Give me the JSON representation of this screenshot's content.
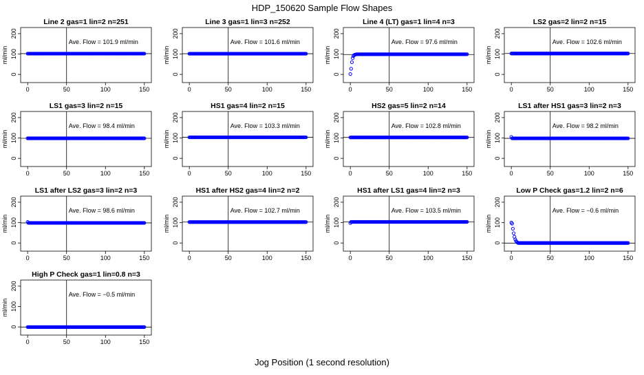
{
  "figure": {
    "title": "HDP_150620  Sample Flow Shapes",
    "xlabel": "Jog Position (1 second resolution)"
  },
  "chart_data": [
    {
      "type": "scatter",
      "title": "Line 2 gas=1 lin=2 n=251",
      "ylabel": "ml/min",
      "annotation": "Ave. Flow = 101.9  ml/min",
      "xlim": [
        0,
        150
      ],
      "ylim": [
        -40,
        230
      ],
      "xticks": [
        0,
        50,
        100,
        150
      ],
      "yticks": [
        0,
        100,
        200
      ],
      "vline": 50,
      "hline": 101.9,
      "point_color": "#0000ff",
      "x": [
        0,
        150
      ],
      "y": [
        101.9,
        101.9
      ]
    },
    {
      "type": "scatter",
      "title": "Line 3 gas=1 lin=3 n=252",
      "ylabel": "ml/min",
      "annotation": "Ave. Flow = 101.6  ml/min",
      "xlim": [
        0,
        150
      ],
      "ylim": [
        -40,
        230
      ],
      "xticks": [
        0,
        50,
        100,
        150
      ],
      "yticks": [
        0,
        100,
        200
      ],
      "vline": 50,
      "hline": 101.6,
      "point_color": "#0000ff",
      "x": [
        0,
        150
      ],
      "y": [
        101.6,
        101.6
      ]
    },
    {
      "type": "scatter",
      "title": "Line 4 (LT) gas=1 lin=4 n=3",
      "ylabel": "ml/min",
      "annotation": "Ave. Flow = 97.6  ml/min",
      "xlim": [
        0,
        150
      ],
      "ylim": [
        -40,
        230
      ],
      "xticks": [
        0,
        50,
        100,
        150
      ],
      "yticks": [
        0,
        100,
        200
      ],
      "vline": 50,
      "hline": 97.6,
      "point_color": "#0000ff",
      "x": [
        0,
        1,
        2,
        3,
        4,
        5,
        6,
        7,
        8,
        150
      ],
      "y": [
        2,
        28,
        60,
        80,
        90,
        95,
        97,
        98,
        99,
        99
      ]
    },
    {
      "type": "scatter",
      "title": "LS2 gas=2 lin=2 n=15",
      "ylabel": "ml/min",
      "annotation": "Ave. Flow = 102.6  ml/min",
      "xlim": [
        0,
        150
      ],
      "ylim": [
        -40,
        230
      ],
      "xticks": [
        0,
        50,
        100,
        150
      ],
      "yticks": [
        0,
        100,
        200
      ],
      "vline": 50,
      "hline": 102.6,
      "point_color": "#0000ff",
      "x": [
        0,
        150
      ],
      "y": [
        102.6,
        102.6
      ]
    },
    {
      "type": "scatter",
      "title": "LS1 gas=3 lin=2 n=15",
      "ylabel": "ml/min",
      "annotation": "Ave. Flow = 98.4  ml/min",
      "xlim": [
        0,
        150
      ],
      "ylim": [
        -40,
        230
      ],
      "xticks": [
        0,
        50,
        100,
        150
      ],
      "yticks": [
        0,
        100,
        200
      ],
      "vline": 50,
      "hline": 98.4,
      "point_color": "#0000ff",
      "x": [
        0,
        150
      ],
      "y": [
        98.4,
        98.4
      ]
    },
    {
      "type": "scatter",
      "title": "HS1 gas=4 lin=2 n=15",
      "ylabel": "ml/min",
      "annotation": "Ave. Flow = 103.3  ml/min",
      "xlim": [
        0,
        150
      ],
      "ylim": [
        -40,
        230
      ],
      "xticks": [
        0,
        50,
        100,
        150
      ],
      "yticks": [
        0,
        100,
        200
      ],
      "vline": 50,
      "hline": 103.3,
      "point_color": "#0000ff",
      "x": [
        0,
        150
      ],
      "y": [
        103.3,
        103.3
      ]
    },
    {
      "type": "scatter",
      "title": "HS2 gas=5 lin=2 n=14",
      "ylabel": "ml/min",
      "annotation": "Ave. Flow = 102.8  ml/min",
      "xlim": [
        0,
        150
      ],
      "ylim": [
        -40,
        230
      ],
      "xticks": [
        0,
        50,
        100,
        150
      ],
      "yticks": [
        0,
        100,
        200
      ],
      "vline": 50,
      "hline": 102.8,
      "point_color": "#0000ff",
      "x": [
        0,
        150
      ],
      "y": [
        102.8,
        102.8
      ]
    },
    {
      "type": "scatter",
      "title": "LS1 after HS1 gas=3 lin=2 n=3",
      "ylabel": "ml/min",
      "annotation": "Ave. Flow = 98.2  ml/min",
      "xlim": [
        0,
        150
      ],
      "ylim": [
        -40,
        230
      ],
      "xticks": [
        0,
        50,
        100,
        150
      ],
      "yticks": [
        0,
        100,
        200
      ],
      "vline": 50,
      "hline": 98.2,
      "point_color": "#0000ff",
      "x": [
        0,
        1,
        150
      ],
      "y": [
        105,
        98.2,
        98.2
      ]
    },
    {
      "type": "scatter",
      "title": "LS1 after LS2 gas=3 lin=2 n=3",
      "ylabel": "ml/min",
      "annotation": "Ave. Flow = 98.6  ml/min",
      "xlim": [
        0,
        150
      ],
      "ylim": [
        -40,
        230
      ],
      "xticks": [
        0,
        50,
        100,
        150
      ],
      "yticks": [
        0,
        100,
        200
      ],
      "vline": 50,
      "hline": 98.6,
      "point_color": "#0000ff",
      "x": [
        0,
        1,
        150
      ],
      "y": [
        103,
        98.6,
        98.6
      ]
    },
    {
      "type": "scatter",
      "title": "HS1 after HS2 gas=4 lin=2 n=2",
      "ylabel": "ml/min",
      "annotation": "Ave. Flow = 102.7  ml/min",
      "xlim": [
        0,
        150
      ],
      "ylim": [
        -40,
        230
      ],
      "xticks": [
        0,
        50,
        100,
        150
      ],
      "yticks": [
        0,
        100,
        200
      ],
      "vline": 50,
      "hline": 102.7,
      "point_color": "#0000ff",
      "x": [
        0,
        150
      ],
      "y": [
        102.7,
        102.7
      ]
    },
    {
      "type": "scatter",
      "title": "HS1 after LS1 gas=4 lin=2 n=3",
      "ylabel": "ml/min",
      "annotation": "Ave. Flow = 103.5  ml/min",
      "xlim": [
        0,
        150
      ],
      "ylim": [
        -40,
        230
      ],
      "xticks": [
        0,
        50,
        100,
        150
      ],
      "yticks": [
        0,
        100,
        200
      ],
      "vline": 50,
      "hline": 103.5,
      "point_color": "#0000ff",
      "x": [
        0,
        1,
        150
      ],
      "y": [
        98,
        103.5,
        103.5
      ]
    },
    {
      "type": "scatter",
      "title": "Low P Check gas=1.2 lin=2 n=6",
      "ylabel": "ml/min",
      "annotation": "Ave. Flow = −0.6  ml/min",
      "xlim": [
        0,
        150
      ],
      "ylim": [
        -40,
        230
      ],
      "xticks": [
        0,
        50,
        100,
        150
      ],
      "yticks": [
        0,
        100,
        200
      ],
      "vline": 50,
      "hline": -0.6,
      "point_color": "#0000ff",
      "x": [
        0,
        1,
        2,
        3,
        4,
        5,
        6,
        7,
        8,
        9,
        10,
        150
      ],
      "y": [
        100,
        95,
        70,
        48,
        30,
        18,
        10,
        5,
        2,
        0,
        0,
        0
      ]
    },
    {
      "type": "scatter",
      "title": "High P Check gas=1 lin=0.8 n=3",
      "ylabel": "ml/min",
      "annotation": "Ave. Flow = −0.5  ml/min",
      "xlim": [
        0,
        150
      ],
      "ylim": [
        -40,
        230
      ],
      "xticks": [
        0,
        50,
        100,
        150
      ],
      "yticks": [
        0,
        100,
        200
      ],
      "vline": 50,
      "hline": -0.5,
      "point_color": "#0000ff",
      "x": [
        0,
        150
      ],
      "y": [
        -0.5,
        -0.5
      ]
    }
  ]
}
